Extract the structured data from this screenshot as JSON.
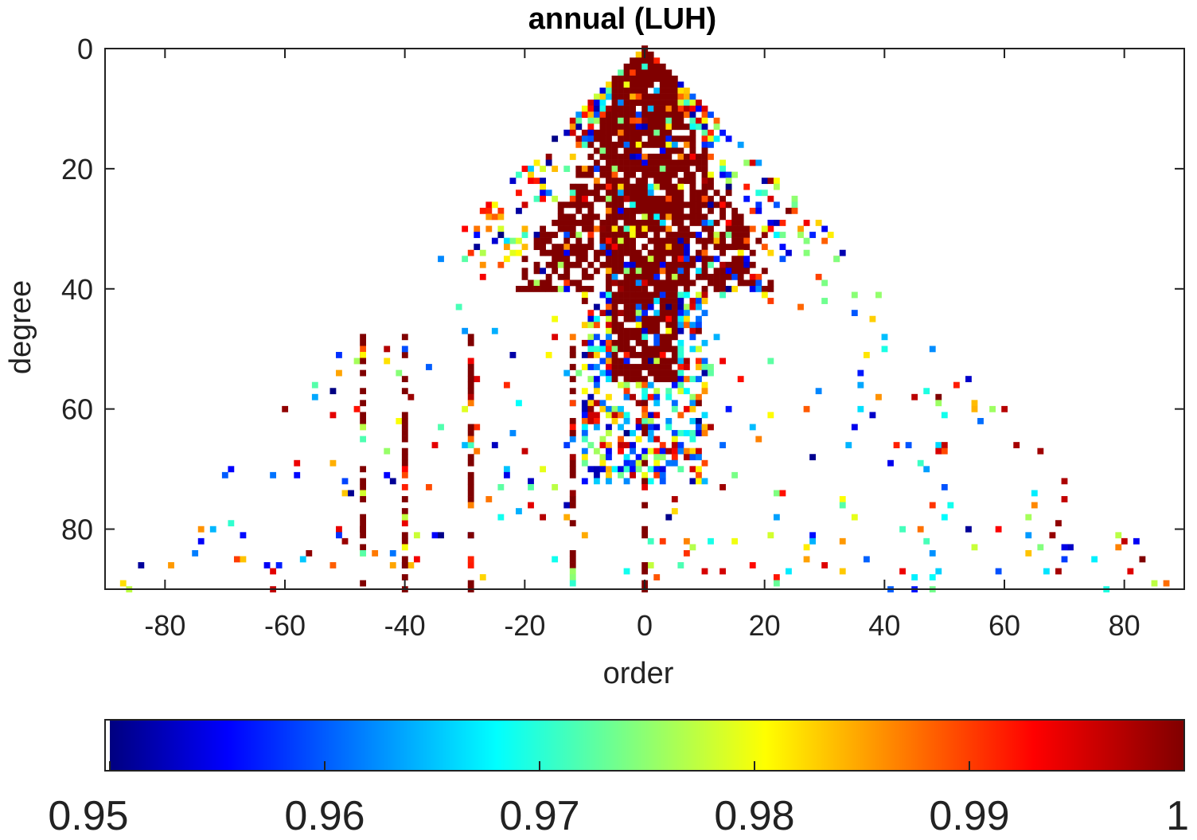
{
  "chart_data": {
    "type": "heatmap",
    "title": "annual (LUH)",
    "xlabel": "order",
    "ylabel": "degree",
    "xlim": [
      -90,
      90
    ],
    "ylim": [
      0,
      90
    ],
    "y_reversed": true,
    "x_ticks": [
      -80,
      -60,
      -40,
      -20,
      0,
      20,
      40,
      60,
      80
    ],
    "y_ticks": [
      0,
      20,
      40,
      60,
      80
    ],
    "colorbar": {
      "location": "bottom",
      "colormap": "jet",
      "range": [
        0.95,
        1
      ],
      "ticks": [
        "0.95",
        "0.96",
        "0.97",
        "0.98",
        "0.99",
        "1"
      ]
    },
    "grid": false,
    "description_of_values": "Each cell (order, degree) with 0<=|order|<=degree<=90 colored by value in [0.95,1]; most cells near the low degrees are ~1 (dark red); white = below range",
    "sample_points": [
      {
        "order": 0,
        "degree": 0,
        "value": 1.0
      },
      {
        "order": -5,
        "degree": 10,
        "value": 1.0
      },
      {
        "order": 5,
        "degree": 10,
        "value": 1.0
      },
      {
        "order": 0,
        "degree": 20,
        "value": 1.0
      },
      {
        "order": -10,
        "degree": 25,
        "value": 0.995
      },
      {
        "order": 10,
        "degree": 25,
        "value": 0.99
      },
      {
        "order": -20,
        "degree": 30,
        "value": 0.985
      },
      {
        "order": 20,
        "degree": 30,
        "value": 0.98
      },
      {
        "order": 0,
        "degree": 40,
        "value": 1.0
      },
      {
        "order": 32,
        "degree": 35,
        "value": 0.975
      },
      {
        "order": -40,
        "degree": 50,
        "value": 0.96
      },
      {
        "order": 40,
        "degree": 50,
        "value": 0.97
      },
      {
        "order": 0,
        "degree": 60,
        "value": 0.99
      },
      {
        "order": -47,
        "degree": 80,
        "value": 1.0
      },
      {
        "order": -12,
        "degree": 85,
        "value": 1.0
      },
      {
        "order": 55,
        "degree": 60,
        "value": 0.985
      },
      {
        "order": 70,
        "degree": 83,
        "value": 0.955
      },
      {
        "order": 83,
        "degree": 85,
        "value": 1.0
      },
      {
        "order": -86,
        "degree": 90,
        "value": 0.978
      },
      {
        "order": 85,
        "degree": 89,
        "value": 0.978
      }
    ]
  }
}
